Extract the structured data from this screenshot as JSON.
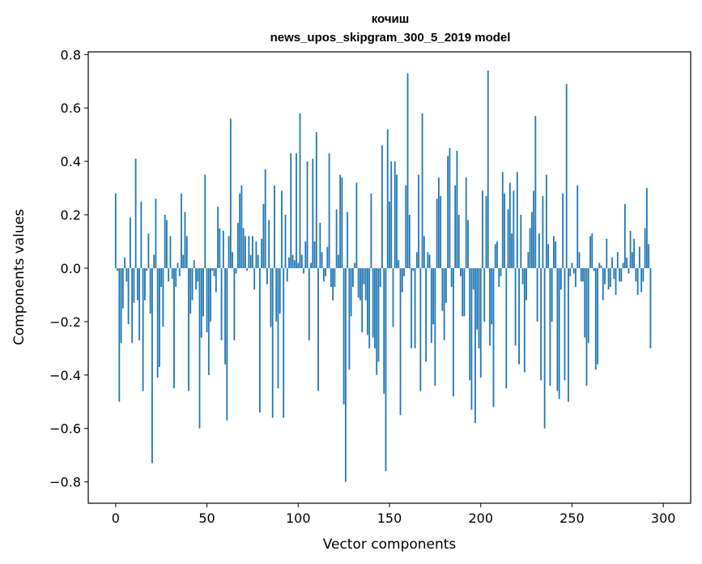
{
  "chart_data": {
    "type": "bar",
    "title_line1": "кочиш",
    "title_line2": "news_upos_skipgram_300_5_2019 model",
    "xlabel": "Vector components",
    "ylabel": "Components values",
    "xlim": [
      -15,
      315
    ],
    "ylim": [
      -0.88,
      0.81
    ],
    "xticks": [
      0,
      50,
      100,
      150,
      200,
      250,
      300
    ],
    "xtick_labels": [
      "0",
      "50",
      "100",
      "150",
      "200",
      "250",
      "300"
    ],
    "yticks": [
      -0.8,
      -0.6,
      -0.4,
      -0.2,
      0.0,
      0.2,
      0.4,
      0.6,
      0.8
    ],
    "ytick_labels": [
      "−0.8",
      "−0.6",
      "−0.4",
      "−0.2",
      "0.0",
      "0.2",
      "0.4",
      "0.6",
      "0.8"
    ],
    "bar_color": "#1f77b4",
    "values": [
      0.28,
      -0.01,
      -0.5,
      -0.28,
      -0.15,
      0.04,
      -0.05,
      -0.21,
      0.19,
      -0.28,
      -0.13,
      0.41,
      -0.12,
      -0.27,
      0.25,
      -0.46,
      -0.12,
      -0.01,
      0.13,
      -0.17,
      -0.73,
      0.05,
      0.26,
      -0.41,
      -0.37,
      -0.07,
      -0.22,
      0.2,
      0.18,
      -0.05,
      0.12,
      -0.04,
      -0.45,
      -0.07,
      0.02,
      -0.03,
      0.28,
      0.05,
      0.21,
      0.12,
      -0.46,
      -0.17,
      -0.12,
      0.03,
      -0.08,
      -0.05,
      -0.6,
      -0.26,
      -0.18,
      0.35,
      -0.24,
      -0.4,
      -0.2,
      -0.01,
      -0.03,
      -0.09,
      0.23,
      0.15,
      -0.27,
      0.14,
      -0.36,
      -0.57,
      0.12,
      0.56,
      0.06,
      -0.27,
      -0.02,
      0.17,
      0.28,
      0.31,
      0.15,
      0.12,
      -0.01,
      0.12,
      0.05,
      0.12,
      -0.08,
      0.1,
      0.05,
      -0.54,
      0.11,
      0.24,
      0.37,
      -0.06,
      0.18,
      -0.22,
      -0.56,
      0.31,
      -0.2,
      -0.45,
      -0.17,
      0.29,
      -0.56,
      0.2,
      -0.05,
      0.04,
      0.43,
      0.05,
      0.03,
      0.43,
      0.02,
      0.58,
      0.05,
      -0.02,
      0.1,
      0.4,
      -0.27,
      0.02,
      0.41,
      0.1,
      0.51,
      -0.46,
      0.17,
      0.06,
      -0.05,
      -0.03,
      0.08,
      0.43,
      -0.07,
      -0.12,
      -0.07,
      0.22,
      0.05,
      0.35,
      0.34,
      -0.51,
      -0.8,
      0.21,
      -0.38,
      -0.18,
      -0.07,
      0.02,
      0.32,
      -0.11,
      -0.12,
      -0.24,
      -0.06,
      -0.12,
      -0.25,
      -0.3,
      0.28,
      -0.26,
      -0.3,
      -0.4,
      -0.35,
      -0.07,
      0.46,
      -0.47,
      -0.76,
      0.52,
      0.25,
      0.4,
      -0.22,
      0.4,
      0.35,
      0.03,
      -0.55,
      -0.09,
      -0.03,
      0.31,
      0.73,
      0.2,
      -0.3,
      -0.01,
      -0.3,
      0.06,
      0.35,
      -0.46,
      0.58,
      0.12,
      -0.35,
      0.06,
      0.05,
      -0.28,
      -0.21,
      -0.44,
      0.26,
      0.34,
      0.27,
      -0.16,
      -0.27,
      -0.13,
      0.42,
      0.45,
      -0.07,
      -0.48,
      0.31,
      0.44,
      0.2,
      -0.03,
      -0.18,
      -0.18,
      0.34,
      0.18,
      -0.42,
      -0.53,
      -0.08,
      -0.58,
      -0.23,
      -0.3,
      -0.41,
      0.29,
      -0.2,
      0.27,
      0.74,
      -0.29,
      -0.21,
      -0.52,
      0.09,
      0.1,
      -0.07,
      -0.03,
      0.36,
      0.28,
      -0.45,
      0.22,
      0.32,
      0.13,
      0.29,
      -0.29,
      0.36,
      -0.36,
      0.2,
      -0.06,
      -0.39,
      -0.12,
      0.06,
      0.15,
      0.21,
      0.29,
      0.57,
      -0.2,
      0.13,
      -0.42,
      0.27,
      -0.6,
      0.35,
      0.09,
      -0.44,
      -0.2,
      0.12,
      0.1,
      -0.46,
      -0.49,
      -0.08,
      0.28,
      -0.42,
      0.69,
      -0.5,
      -0.03,
      0.02,
      -0.02,
      -0.07,
      0.31,
      0.06,
      -0.05,
      -0.05,
      -0.26,
      -0.44,
      -0.28,
      0.12,
      0.13,
      -0.01,
      -0.38,
      -0.36,
      0.02,
      0.01,
      -0.12,
      -0.06,
      0.11,
      -0.08,
      -0.07,
      0.04,
      -0.04,
      -0.1,
      0.06,
      -0.05,
      -0.05,
      0.02,
      0.24,
      0.04,
      -0.02,
      0.14,
      0.06,
      0.11,
      -0.05,
      -0.1,
      0.08,
      -0.09,
      -0.05,
      0.15,
      0.3,
      0.09,
      -0.3
    ]
  }
}
